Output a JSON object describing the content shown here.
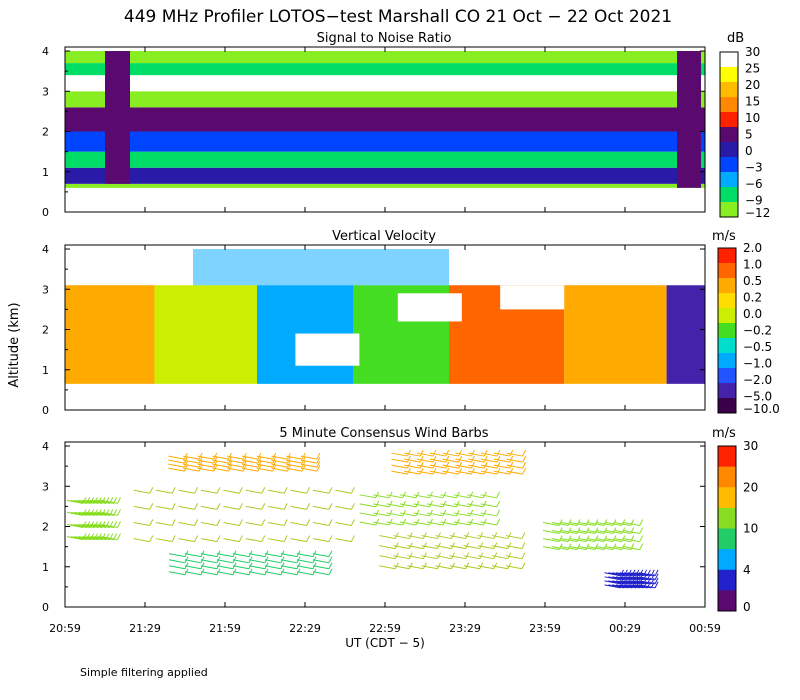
{
  "figure": {
    "title": "449 MHz Profiler LOTOS−test Marshall CO 21 Oct − 22 Oct 2021",
    "ylabel": "Altitude (km)",
    "xlabel": "UT  (CDT − 5)",
    "footnote": "Simple filtering applied"
  },
  "chart_data": [
    {
      "type": "heatmap",
      "title": "Signal to Noise Ratio",
      "colorbar_unit": "dB",
      "colorbar_labels": [
        "30",
        "25",
        "20",
        "15",
        "10",
        "5",
        "0",
        "−3",
        "−6",
        "−9",
        "−12"
      ],
      "colorbar_colors": [
        "#ffffff",
        "#ffff00",
        "#ffbb00",
        "#ff8800",
        "#ff2200",
        "#5a0a6e",
        "#2a1aa8",
        "#0044ff",
        "#00aaff",
        "#00dd66",
        "#88ee22"
      ],
      "xticks": [
        "20:59",
        "21:29",
        "21:59",
        "22:29",
        "22:59",
        "23:29",
        "23:59",
        "00:29",
        "00:59"
      ],
      "yticks": [
        "0",
        "1",
        "2",
        "3",
        "4"
      ],
      "ylim": [
        0,
        4.1
      ],
      "bands": [
        {
          "y0": 0.6,
          "y1": 0.7,
          "color": "#88ee22"
        },
        {
          "y0": 0.7,
          "y1": 1.1,
          "color": "#2a1aa8"
        },
        {
          "y0": 1.1,
          "y1": 1.5,
          "color": "#00dd66"
        },
        {
          "y0": 1.5,
          "y1": 2.0,
          "color": "#0044ff"
        },
        {
          "y0": 2.0,
          "y1": 2.6,
          "color": "#5a0a6e"
        },
        {
          "y0": 2.6,
          "y1": 3.0,
          "color": "#88ee22"
        },
        {
          "y0": 3.0,
          "y1": 3.4,
          "color": "#ffffff"
        },
        {
          "y0": 3.4,
          "y1": 3.7,
          "color": "#00dd66"
        },
        {
          "y0": 3.7,
          "y1": 4.0,
          "color": "#88ee22"
        }
      ]
    },
    {
      "type": "heatmap",
      "title": "Vertical Velocity",
      "colorbar_unit": "m/s",
      "colorbar_labels": [
        "2.0",
        "1.0",
        "0.5",
        "0.2",
        "0.0",
        "−0.2",
        "−0.5",
        "−1.0",
        "−2.0",
        "−5.0",
        "−10.0"
      ],
      "colorbar_colors": [
        "#ff2200",
        "#ff6600",
        "#ffaa00",
        "#ffdd00",
        "#ccee00",
        "#44dd22",
        "#00ddcc",
        "#00aaff",
        "#2255ff",
        "#4422aa",
        "#3a004a"
      ],
      "xticks": [
        "20:59",
        "21:29",
        "21:59",
        "22:29",
        "22:59",
        "23:29",
        "23:59",
        "00:29",
        "00:59"
      ],
      "yticks": [
        "0",
        "1",
        "2",
        "3",
        "4"
      ],
      "ylim": [
        0,
        4.1
      ],
      "segments": [
        {
          "t0": 0.0,
          "t1": 0.14,
          "color": "#ffaa00"
        },
        {
          "t0": 0.14,
          "t1": 0.3,
          "color": "#ccee00"
        },
        {
          "t0": 0.3,
          "t1": 0.45,
          "color": "#00aaff"
        },
        {
          "t0": 0.45,
          "t1": 0.6,
          "color": "#44dd22"
        },
        {
          "t0": 0.6,
          "t1": 0.78,
          "color": "#ff6600"
        },
        {
          "t0": 0.78,
          "t1": 0.94,
          "color": "#ffaa00"
        },
        {
          "t0": 0.94,
          "t1": 1.0,
          "color": "#4422aa"
        }
      ]
    },
    {
      "type": "scatter",
      "title": "5 Minute Consensus Wind Barbs",
      "colorbar_unit": "m/s",
      "colorbar_labels": [
        "30",
        "20",
        "10",
        "4",
        "0"
      ],
      "colorbar_colors": [
        "#ff2200",
        "#ff8800",
        "#ffbb00",
        "#88dd22",
        "#22cc66",
        "#00aaff",
        "#2222cc",
        "#5a0a6e"
      ],
      "xticks": [
        "20:59",
        "21:29",
        "21:59",
        "22:29",
        "22:59",
        "23:29",
        "23:59",
        "00:29",
        "00:59"
      ],
      "yticks": [
        "0",
        "1",
        "2",
        "3",
        "4"
      ],
      "ylim": [
        0,
        4.1
      ],
      "clusters": [
        {
          "t0": 0.0,
          "t1": 0.06,
          "a0": 1.6,
          "a1": 2.8,
          "color": "#88dd22"
        },
        {
          "t0": 0.09,
          "t1": 0.44,
          "a0": 1.5,
          "a1": 3.1,
          "color": "#aacc22"
        },
        {
          "t0": 0.15,
          "t1": 0.4,
          "a0": 0.8,
          "a1": 1.4,
          "color": "#22cc66"
        },
        {
          "t0": 0.15,
          "t1": 0.38,
          "a0": 3.4,
          "a1": 3.8,
          "color": "#ffaa00"
        },
        {
          "t0": 0.45,
          "t1": 0.66,
          "a0": 2.0,
          "a1": 2.9,
          "color": "#88dd22"
        },
        {
          "t0": 0.48,
          "t1": 0.7,
          "a0": 0.9,
          "a1": 1.9,
          "color": "#aacc22"
        },
        {
          "t0": 0.5,
          "t1": 0.7,
          "a0": 3.3,
          "a1": 3.9,
          "color": "#ffaa00"
        },
        {
          "t0": 0.74,
          "t1": 0.88,
          "a0": 1.4,
          "a1": 2.2,
          "color": "#88dd22"
        },
        {
          "t0": 0.84,
          "t1": 0.9,
          "a0": 0.5,
          "a1": 0.9,
          "color": "#2222cc"
        }
      ]
    }
  ]
}
